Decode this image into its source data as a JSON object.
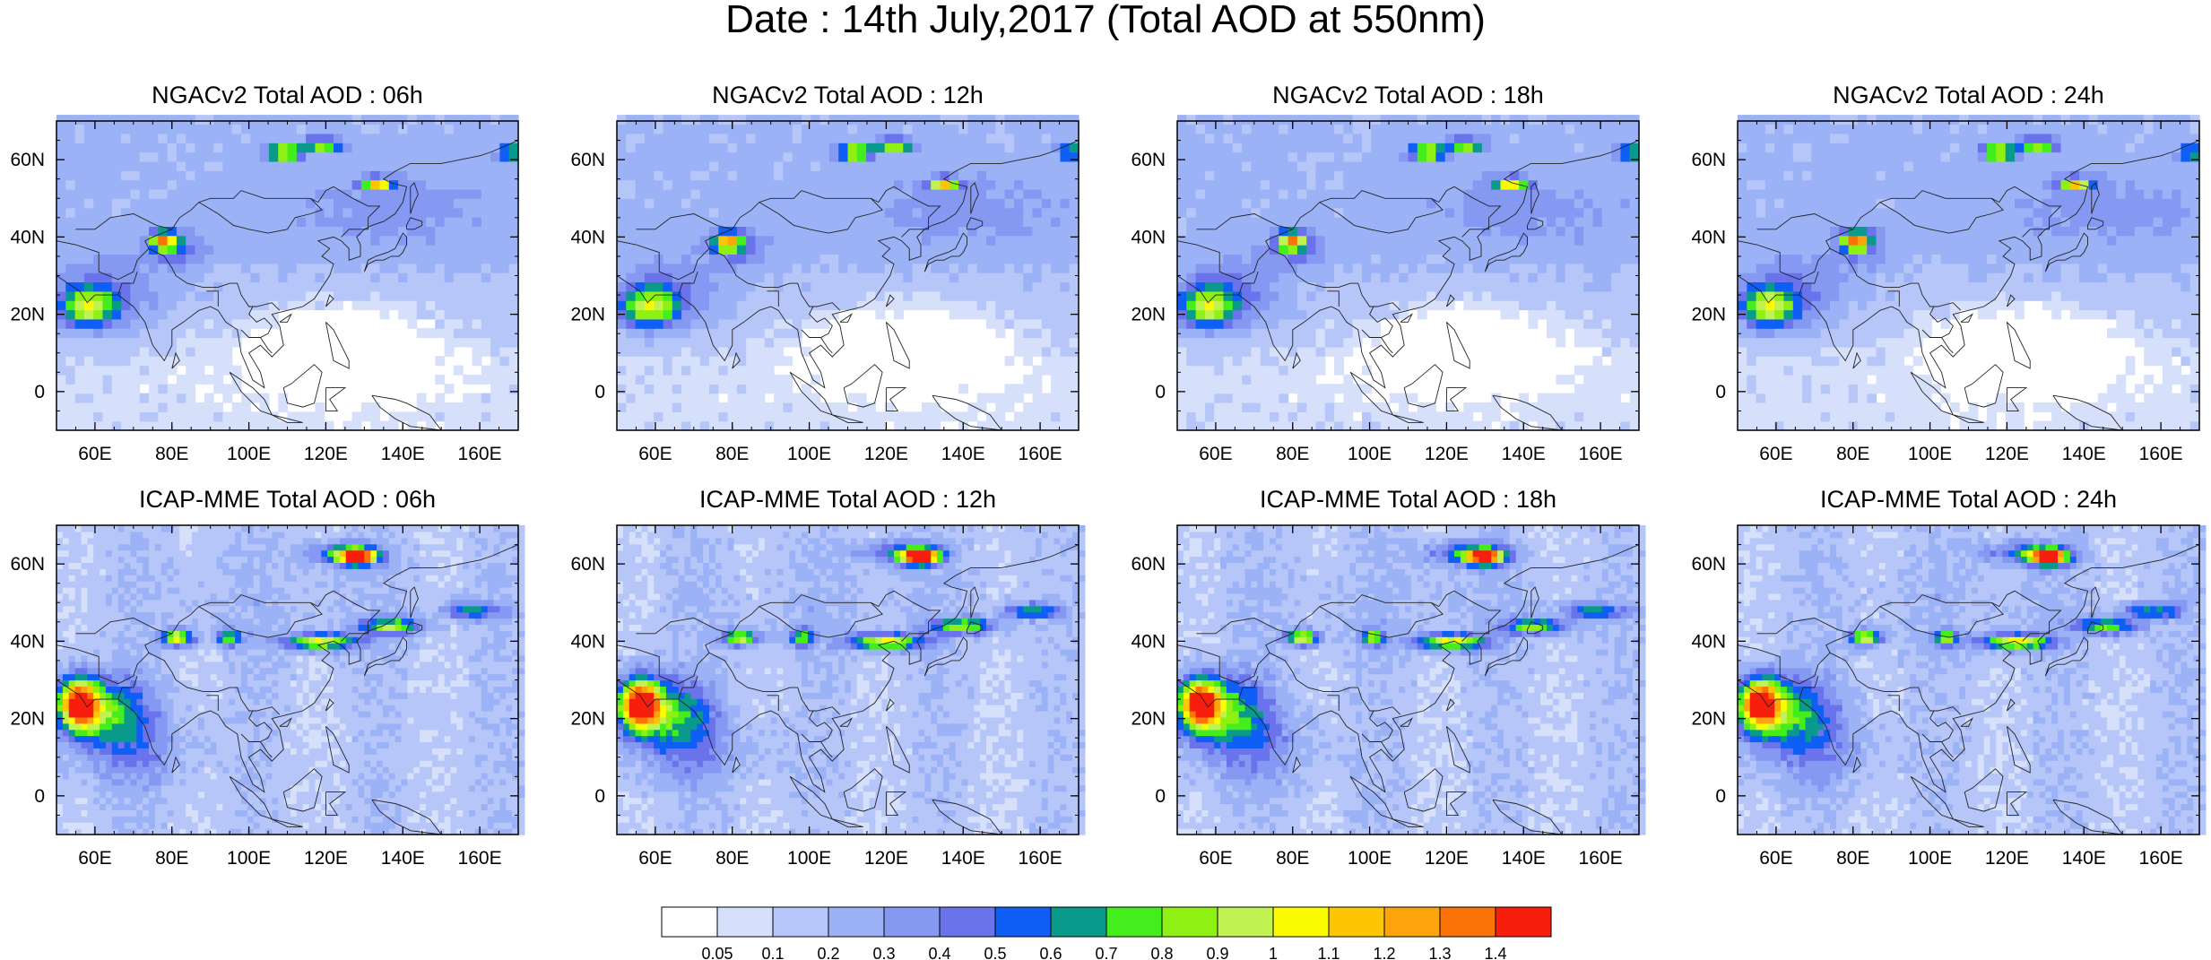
{
  "title": "Date : 14th July,2017 (Total AOD at 550nm)",
  "panels": [
    {
      "title": "NGACv2 Total AOD : 06h",
      "model": "NGACv2"
    },
    {
      "title": "NGACv2 Total AOD : 12h",
      "model": "NGACv2"
    },
    {
      "title": "NGACv2 Total AOD : 18h",
      "model": "NGACv2"
    },
    {
      "title": "NGACv2 Total AOD : 24h",
      "model": "NGACv2"
    },
    {
      "title": "ICAP-MME Total AOD : 06h",
      "model": "ICAP-MME"
    },
    {
      "title": "ICAP-MME Total AOD : 12h",
      "model": "ICAP-MME"
    },
    {
      "title": "ICAP-MME Total AOD : 18h",
      "model": "ICAP-MME"
    },
    {
      "title": "ICAP-MME Total AOD : 24h",
      "model": "ICAP-MME"
    }
  ],
  "axes": {
    "lon_range": [
      50,
      170
    ],
    "lat_range": [
      -10,
      70
    ],
    "lon_ticks": [
      {
        "value": 60,
        "label": "60E"
      },
      {
        "value": 80,
        "label": "80E"
      },
      {
        "value": 100,
        "label": "100E"
      },
      {
        "value": 120,
        "label": "120E"
      },
      {
        "value": 140,
        "label": "140E"
      },
      {
        "value": 160,
        "label": "160E"
      }
    ],
    "lat_ticks": [
      {
        "value": 0,
        "label": "0"
      },
      {
        "value": 20,
        "label": "20N"
      },
      {
        "value": 40,
        "label": "40N"
      },
      {
        "value": 60,
        "label": "60N"
      }
    ]
  },
  "colorbar": {
    "levels": [
      "0.05",
      "0.1",
      "0.2",
      "0.3",
      "0.4",
      "0.5",
      "0.6",
      "0.7",
      "0.8",
      "0.9",
      "1",
      "1.1",
      "1.2",
      "1.3",
      "1.4"
    ],
    "colors": [
      "#ffffff",
      "#d6e0fb",
      "#b7c6f8",
      "#9cb2f6",
      "#8599f3",
      "#6a72ec",
      "#0f5ef5",
      "#0a9a8c",
      "#44ee1d",
      "#8ff013",
      "#c0f252",
      "#fbfb02",
      "#fdc605",
      "#fda40c",
      "#fb7206",
      "#f81e0d"
    ]
  },
  "aod_field": {
    "description_units": "AOD",
    "features": {
      "NGACv2": {
        "background_north": 0.22,
        "background_south": 0.08,
        "arabian_plume": 0.7,
        "taklamakan_dust": 1.0,
        "siberian_smoke": 1.0,
        "east_asia": 0.35
      },
      "ICAP-MME": {
        "background": 0.15,
        "arabian_plume": 1.3,
        "siberian_smoke": 1.4,
        "china_band": 0.9,
        "taklamakan_dust": 0.9
      }
    }
  }
}
